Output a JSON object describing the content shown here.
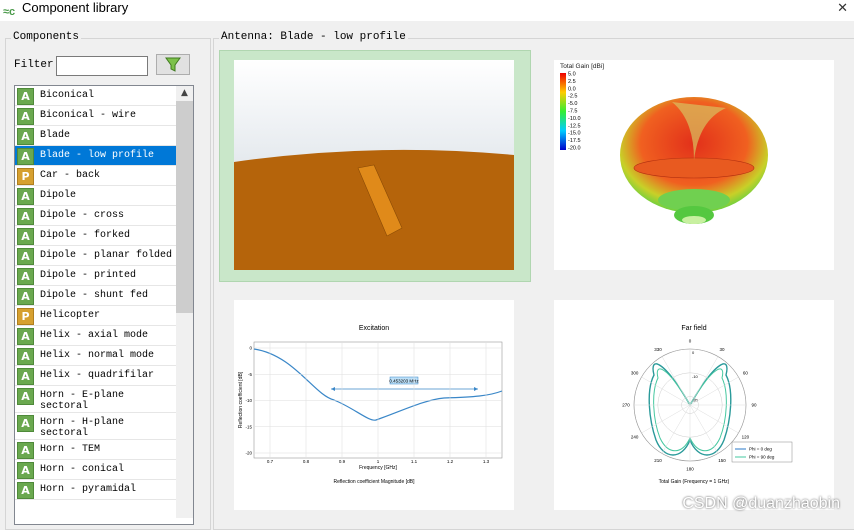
{
  "window": {
    "title": "Component library"
  },
  "components": {
    "label": "Components",
    "filter_label": "Filter",
    "items": [
      {
        "icon": "A",
        "label": "Biconical"
      },
      {
        "icon": "A",
        "label": "Biconical - wire"
      },
      {
        "icon": "A",
        "label": "Blade"
      },
      {
        "icon": "A",
        "label": "Blade - low profile"
      },
      {
        "icon": "P",
        "label": "Car - back"
      },
      {
        "icon": "A",
        "label": "Dipole"
      },
      {
        "icon": "A",
        "label": "Dipole - cross"
      },
      {
        "icon": "A",
        "label": "Dipole - forked"
      },
      {
        "icon": "A",
        "label": "Dipole - planar folded"
      },
      {
        "icon": "A",
        "label": "Dipole - printed"
      },
      {
        "icon": "A",
        "label": "Dipole - shunt fed"
      },
      {
        "icon": "P",
        "label": "Helicopter"
      },
      {
        "icon": "A",
        "label": "Helix - axial mode"
      },
      {
        "icon": "A",
        "label": "Helix - normal mode"
      },
      {
        "icon": "A",
        "label": "Helix - quadrifilar"
      },
      {
        "icon": "A",
        "label": "Horn - E-plane sectoral"
      },
      {
        "icon": "A",
        "label": "Horn - H-plane sectoral"
      },
      {
        "icon": "A",
        "label": "Horn - TEM"
      },
      {
        "icon": "A",
        "label": "Horn - conical"
      },
      {
        "icon": "A",
        "label": "Horn - pyramidal"
      }
    ]
  },
  "preview": {
    "label": "Antenna: Blade - low profile",
    "gain": {
      "title": "Total Gain [dBi]",
      "labels": [
        "5.0",
        "2.5",
        "0.0",
        "-2.5",
        "-5.0",
        "-7.5",
        "-10.0",
        "-12.5",
        "-15.0",
        "-17.5",
        "-20.0"
      ]
    },
    "excitation": {
      "title": "Excitation",
      "ylabel": "Reflection coefficient [dB]",
      "xlabel": "Frequency [GHz]",
      "caption": "Reflection coefficient Magnitude [dB]",
      "annotation": "0.453203 MHz",
      "xticks": [
        0.7,
        0.8,
        0.9,
        1.0,
        1.1,
        1.2,
        1.3
      ],
      "yticks": [
        0,
        -5,
        -10,
        -15,
        -20
      ]
    },
    "farfield": {
      "title": "Far field",
      "angles": [
        0,
        30,
        60,
        90,
        120,
        150,
        180,
        210,
        240,
        270,
        300,
        330
      ],
      "rings": [
        0,
        -10,
        -20
      ],
      "legend": [
        "Phi = 0 deg",
        "Phi = 90 deg"
      ],
      "caption": "Total Gain (Frequency = 1 GHz)"
    }
  },
  "watermark": "CSDN @duanzhaobin"
}
